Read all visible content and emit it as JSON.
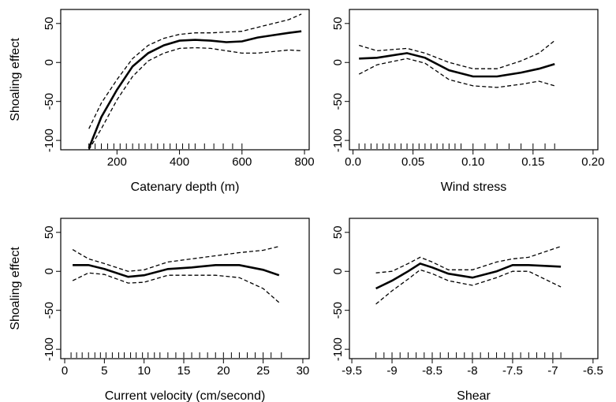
{
  "chart_data": [
    {
      "type": "line",
      "xlabel": "Catenary depth (m)",
      "ylabel": "Shoaling effect",
      "xlim": [
        20,
        815
      ],
      "xticks": [
        200,
        400,
        600,
        800
      ],
      "ylim": [
        -112,
        68
      ],
      "yticks": [
        -100,
        -50,
        0,
        50
      ],
      "x": [
        110,
        150,
        200,
        250,
        300,
        350,
        400,
        450,
        500,
        550,
        600,
        650,
        700,
        750,
        790
      ],
      "series": [
        {
          "color": "#000000",
          "style": "solid",
          "values": [
            -110,
            -70,
            -35,
            -5,
            12,
            22,
            28,
            29,
            28,
            26,
            27,
            32,
            35,
            38,
            40
          ]
        },
        {
          "color": "#000000",
          "style": "dashed",
          "values": [
            -85,
            -52,
            -22,
            5,
            22,
            31,
            36,
            38,
            38,
            39,
            40,
            45,
            50,
            55,
            62
          ]
        },
        {
          "color": "#000000",
          "style": "dashed",
          "values": [
            -112,
            -85,
            -48,
            -18,
            2,
            12,
            18,
            19,
            18,
            15,
            12,
            12,
            14,
            16,
            15
          ]
        }
      ],
      "rug": [
        110,
        130,
        150,
        170,
        190,
        210,
        230,
        250,
        270,
        290,
        310,
        330,
        350,
        370,
        390,
        410,
        430,
        450,
        480,
        510,
        540,
        570,
        600
      ]
    },
    {
      "type": "line",
      "xlabel": "Wind stress",
      "xlim": [
        -0.003,
        0.204
      ],
      "xticks": [
        {
          "value": 0,
          "label": "0.0"
        },
        0.05,
        {
          "value": 0.1,
          "label": "0.10"
        },
        0.15,
        {
          "value": 0.2,
          "label": "0.20"
        }
      ],
      "ylim": [
        -112,
        68
      ],
      "yticks": [
        -100,
        -50,
        0,
        50
      ],
      "x": [
        0.005,
        0.02,
        0.045,
        0.06,
        0.08,
        0.1,
        0.12,
        0.14,
        0.155,
        0.168
      ],
      "series": [
        {
          "color": "#000000",
          "style": "solid",
          "values": [
            5,
            6,
            12,
            6,
            -10,
            -18,
            -18,
            -13,
            -8,
            -2
          ]
        },
        {
          "color": "#000000",
          "style": "dashed",
          "values": [
            22,
            15,
            18,
            12,
            0,
            -8,
            -8,
            2,
            12,
            28
          ]
        },
        {
          "color": "#000000",
          "style": "dashed",
          "values": [
            -15,
            -3,
            5,
            -1,
            -22,
            -30,
            -32,
            -28,
            -24,
            -30
          ]
        }
      ],
      "rug": [
        0.005,
        0.01,
        0.015,
        0.02,
        0.025,
        0.03,
        0.035,
        0.04,
        0.045,
        0.05,
        0.055,
        0.06,
        0.065,
        0.07,
        0.075,
        0.08,
        0.085,
        0.09,
        0.1,
        0.11,
        0.12,
        0.13,
        0.14,
        0.15,
        0.16,
        0.168
      ]
    },
    {
      "type": "line",
      "xlabel": "Current velocity (cm/second)",
      "ylabel": "Shoaling effect",
      "xlim": [
        -0.5,
        30.8
      ],
      "xticks": [
        0,
        5,
        10,
        15,
        20,
        25,
        30
      ],
      "ylim": [
        -112,
        68
      ],
      "yticks": [
        -100,
        -50,
        0,
        50
      ],
      "x": [
        1,
        3,
        5,
        8,
        10,
        13,
        16,
        19,
        22,
        25,
        27
      ],
      "series": [
        {
          "color": "#000000",
          "style": "solid",
          "values": [
            8,
            8,
            3,
            -7,
            -5,
            3,
            5,
            8,
            8,
            2,
            -5
          ]
        },
        {
          "color": "#000000",
          "style": "dashed",
          "values": [
            28,
            16,
            10,
            0,
            2,
            12,
            16,
            20,
            24,
            27,
            32
          ]
        },
        {
          "color": "#000000",
          "style": "dashed",
          "values": [
            -12,
            -2,
            -4,
            -15,
            -14,
            -5,
            -5,
            -5,
            -8,
            -22,
            -40
          ]
        }
      ],
      "rug": [
        0.8,
        1.5,
        2.2,
        3,
        3.8,
        4.5,
        5.2,
        6,
        6.8,
        7.5,
        8.3,
        9,
        9.8,
        10.5,
        11.3,
        12,
        13,
        14,
        15,
        16,
        17,
        18,
        19,
        20,
        21,
        22,
        23,
        24,
        25,
        26,
        27.3
      ]
    },
    {
      "type": "line",
      "xlabel": "Shear",
      "xlim": [
        -9.53,
        -6.44
      ],
      "xticks": [
        -9.5,
        -9,
        -8.5,
        -8,
        -7.5,
        -7,
        -6.5
      ],
      "ylim": [
        -112,
        68
      ],
      "yticks": [
        -100,
        -50,
        0,
        50
      ],
      "x": [
        -9.2,
        -9.0,
        -8.8,
        -8.65,
        -8.5,
        -8.3,
        -8.0,
        -7.7,
        -7.5,
        -7.3,
        -6.9
      ],
      "series": [
        {
          "color": "#000000",
          "style": "solid",
          "values": [
            -22,
            -12,
            0,
            10,
            5,
            -3,
            -8,
            0,
            8,
            8,
            6
          ]
        },
        {
          "color": "#000000",
          "style": "dashed",
          "values": [
            -2,
            0,
            10,
            18,
            12,
            2,
            2,
            12,
            16,
            18,
            32
          ]
        },
        {
          "color": "#000000",
          "style": "dashed",
          "values": [
            -42,
            -25,
            -10,
            2,
            -3,
            -12,
            -18,
            -8,
            0,
            0,
            -20
          ]
        }
      ],
      "rug": [
        -9.2,
        -9.1,
        -9.0,
        -8.9,
        -8.8,
        -8.7,
        -8.6,
        -8.5,
        -8.4,
        -8.3,
        -8.2,
        -8.1,
        -8.0,
        -7.9,
        -7.8,
        -7.7,
        -7.6,
        -7.5,
        -7.4,
        -7.3,
        -7.2,
        -7.1,
        -7.0,
        -6.9
      ]
    }
  ]
}
